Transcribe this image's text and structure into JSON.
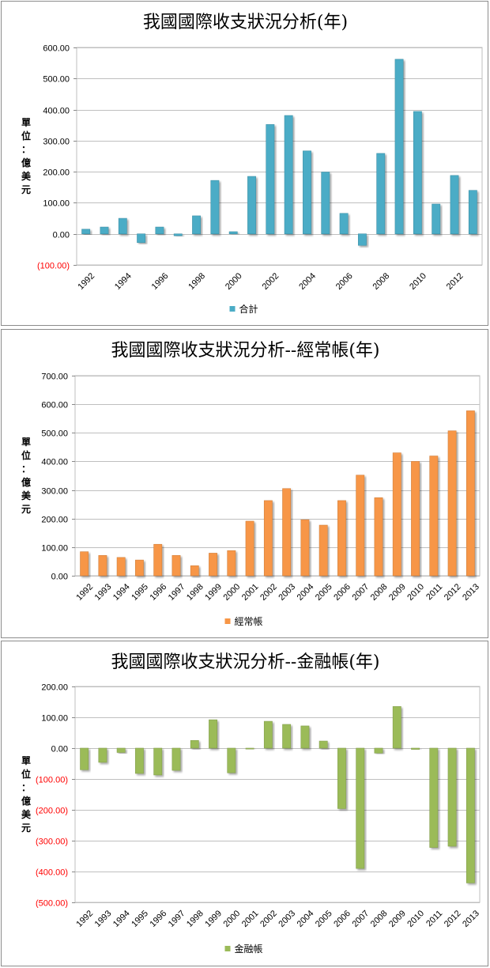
{
  "chart_data": [
    {
      "type": "bar",
      "title": "我國國際收支狀況分析(年)",
      "ylabel": "單位：億美元",
      "ylim": [
        -100,
        600
      ],
      "ytick_step": 100,
      "ytick_labels": [
        "(100.00)",
        "0.00",
        "100.00",
        "200.00",
        "300.00",
        "400.00",
        "500.00",
        "600.00"
      ],
      "categories": [
        "1992",
        "1993",
        "1994",
        "1995",
        "1996",
        "1997",
        "1998",
        "1999",
        "2000",
        "2001",
        "2002",
        "2003",
        "2004",
        "2005",
        "2006",
        "2007",
        "2008",
        "2009",
        "2010",
        "2011",
        "2012",
        "2013"
      ],
      "xtick_labels": [
        "1992",
        "",
        "1994",
        "",
        "1996",
        "",
        "1998",
        "",
        "2000",
        "",
        "2002",
        "",
        "2004",
        "",
        "2006",
        "",
        "2008",
        "",
        "2010",
        "",
        "2012",
        ""
      ],
      "series": [
        {
          "name": "合計",
          "color": "#4bacc6",
          "values": [
            15,
            22,
            50,
            -28,
            22,
            -6,
            58,
            172,
            7,
            185,
            352,
            381,
            267,
            199,
            66,
            -37,
            259,
            562,
            394,
            96,
            188,
            140
          ]
        }
      ],
      "legend": "bottom-center"
    },
    {
      "type": "bar",
      "title": "我國國際收支狀況分析--經常帳(年)",
      "ylabel": "單位：億美元",
      "ylim": [
        0,
        700
      ],
      "ytick_step": 100,
      "ytick_labels": [
        "0.00",
        "100.00",
        "200.00",
        "300.00",
        "400.00",
        "500.00",
        "600.00",
        "700.00"
      ],
      "categories": [
        "1992",
        "1993",
        "1994",
        "1995",
        "1996",
        "1997",
        "1998",
        "1999",
        "2000",
        "2001",
        "2002",
        "2003",
        "2004",
        "2005",
        "2006",
        "2007",
        "2008",
        "2009",
        "2010",
        "2011",
        "2012",
        "2013"
      ],
      "xtick_labels": [
        "1992",
        "1993",
        "1994",
        "1995",
        "1996",
        "1997",
        "1998",
        "1999",
        "2000",
        "2001",
        "2002",
        "2003",
        "2004",
        "2005",
        "2006",
        "2007",
        "2008",
        "2009",
        "2010",
        "2011",
        "2012",
        "2013"
      ],
      "series": [
        {
          "name": "經常帳",
          "color": "#f79646",
          "values": [
            84,
            71,
            64,
            55,
            110,
            71,
            35,
            79,
            88,
            191,
            263,
            305,
            196,
            177,
            263,
            352,
            273,
            430,
            400,
            419,
            507,
            577
          ]
        }
      ],
      "legend": "bottom-center"
    },
    {
      "type": "bar",
      "title": "我國國際收支狀況分析--金融帳(年)",
      "ylabel": "單位：億美元",
      "ylim": [
        -500,
        200
      ],
      "ytick_step": 100,
      "ytick_labels": [
        "(500.00)",
        "(400.00)",
        "(300.00)",
        "(200.00)",
        "(100.00)",
        "0.00",
        "100.00",
        "200.00"
      ],
      "categories": [
        "1992",
        "1993",
        "1994",
        "1995",
        "1996",
        "1997",
        "1998",
        "1999",
        "2000",
        "2001",
        "2002",
        "2003",
        "2004",
        "2005",
        "2006",
        "2007",
        "2008",
        "2009",
        "2010",
        "2011",
        "2012",
        "2013"
      ],
      "xtick_labels": [
        "1992",
        "1993",
        "1994",
        "1995",
        "1996",
        "1997",
        "1998",
        "1999",
        "2000",
        "2001",
        "2002",
        "2003",
        "2004",
        "2005",
        "2006",
        "2007",
        "2008",
        "2009",
        "2010",
        "2011",
        "2012",
        "2013"
      ],
      "series": [
        {
          "name": "金融帳",
          "color": "#9bbb59",
          "values": [
            -70,
            -46,
            -14,
            -82,
            -87,
            -72,
            25,
            92,
            -80,
            -3,
            87,
            77,
            72,
            23,
            -196,
            -390,
            -16,
            135,
            -4,
            -322,
            -318,
            -437
          ]
        }
      ],
      "legend": "bottom-center"
    }
  ]
}
